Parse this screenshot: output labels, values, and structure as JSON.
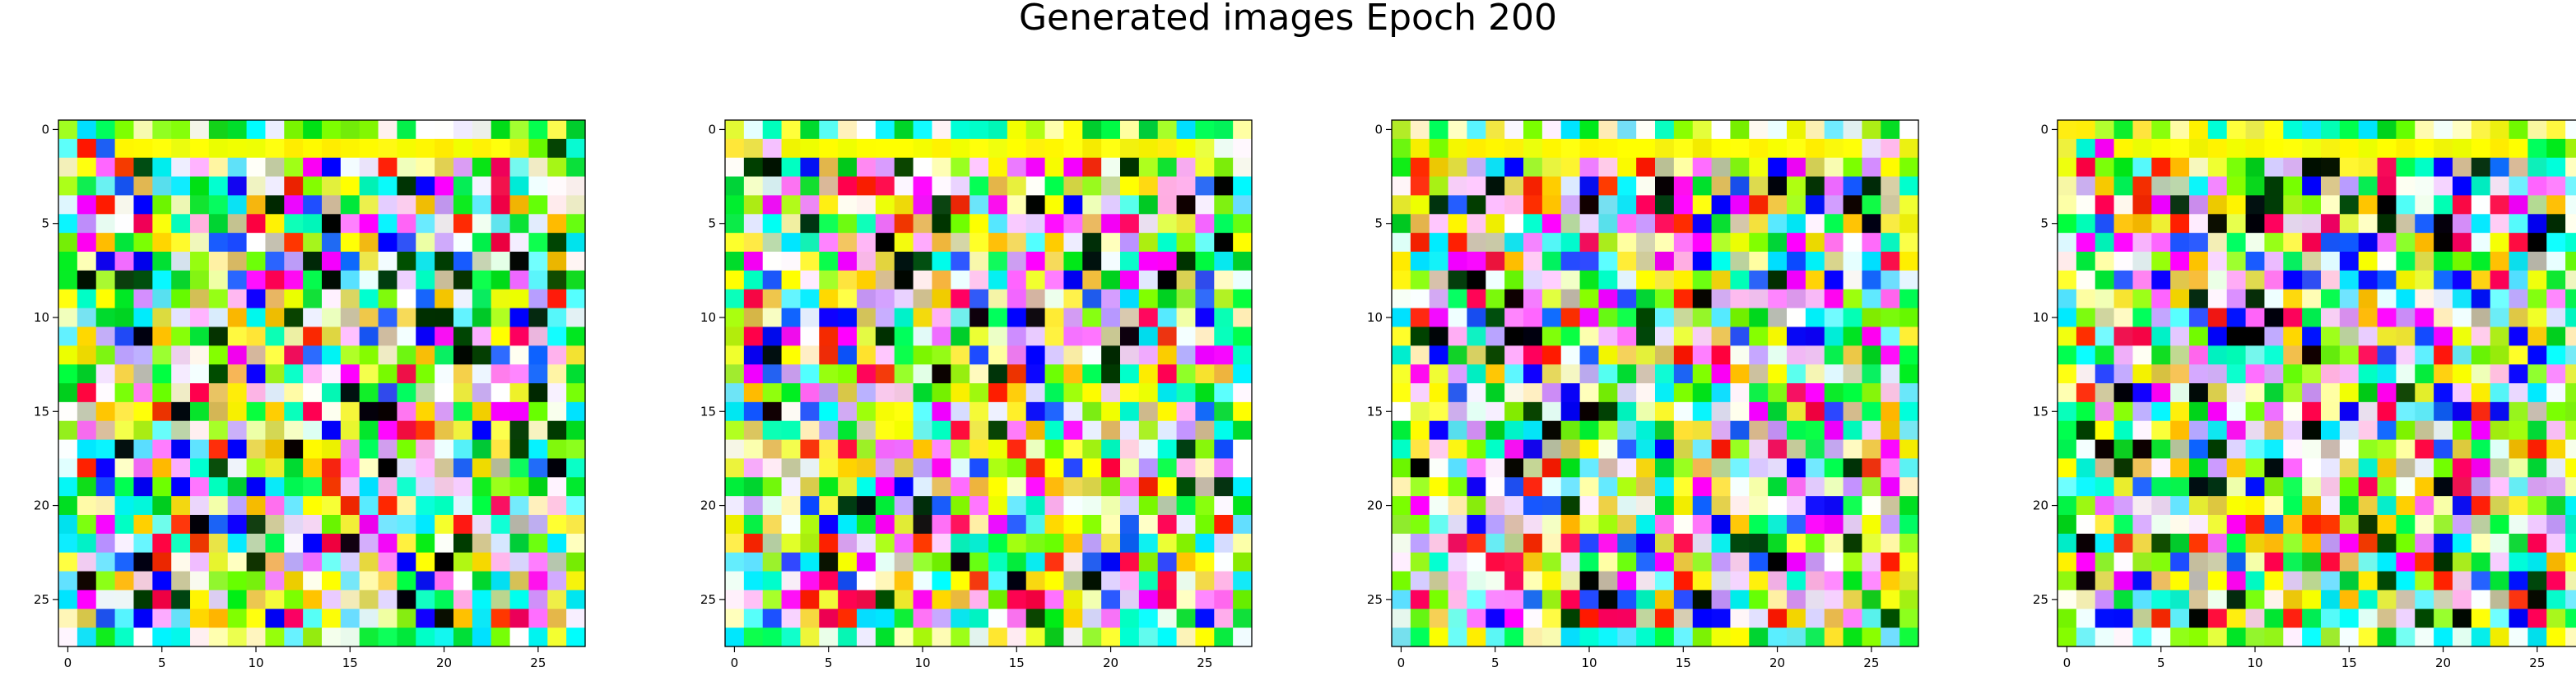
{
  "figure": {
    "title": "Generated images Epoch 200"
  },
  "chart_data": [
    {
      "type": "heatmap",
      "title": "",
      "xlabel": "",
      "ylabel": "",
      "grid_size": [
        28,
        28
      ],
      "xlim": [
        -0.5,
        27.5
      ],
      "ylim": [
        27.5,
        -0.5
      ],
      "x_ticks": [
        0,
        5,
        10,
        15,
        20,
        25
      ],
      "y_ticks": [
        0,
        5,
        10,
        15,
        20,
        25
      ],
      "grid": false,
      "palette_hint": "noisy RGB pixels dominated by yellow, lime green, cyan, magenta, white",
      "seed": 11
    },
    {
      "type": "heatmap",
      "title": "",
      "xlabel": "",
      "ylabel": "",
      "grid_size": [
        28,
        28
      ],
      "xlim": [
        -0.5,
        27.5
      ],
      "ylim": [
        27.5,
        -0.5
      ],
      "x_ticks": [
        0,
        5,
        10,
        15,
        20,
        25
      ],
      "y_ticks": [
        0,
        5,
        10,
        15,
        20,
        25
      ],
      "grid": false,
      "palette_hint": "noisy RGB pixels dominated by yellow, cyan, light pink, white",
      "seed": 23
    },
    {
      "type": "heatmap",
      "title": "",
      "xlabel": "",
      "ylabel": "",
      "grid_size": [
        28,
        28
      ],
      "xlim": [
        -0.5,
        27.5
      ],
      "ylim": [
        27.5,
        -0.5
      ],
      "x_ticks": [
        0,
        5,
        10,
        15,
        20,
        25
      ],
      "y_ticks": [
        0,
        5,
        10,
        15,
        20,
        25
      ],
      "grid": false,
      "palette_hint": "noisy RGB pixels dominated by magenta, yellow, cyan, blue",
      "seed": 37
    },
    {
      "type": "heatmap",
      "title": "",
      "xlabel": "",
      "ylabel": "",
      "grid_size": [
        28,
        28
      ],
      "xlim": [
        -0.5,
        27.5
      ],
      "ylim": [
        27.5,
        -0.5
      ],
      "x_ticks": [
        0,
        5,
        10,
        15,
        20,
        25
      ],
      "y_ticks": [
        0,
        5,
        10,
        15,
        20,
        25
      ],
      "grid": false,
      "palette_hint": "noisy RGB pixels dominated by yellow, green, cyan, pink",
      "seed": 53
    }
  ]
}
